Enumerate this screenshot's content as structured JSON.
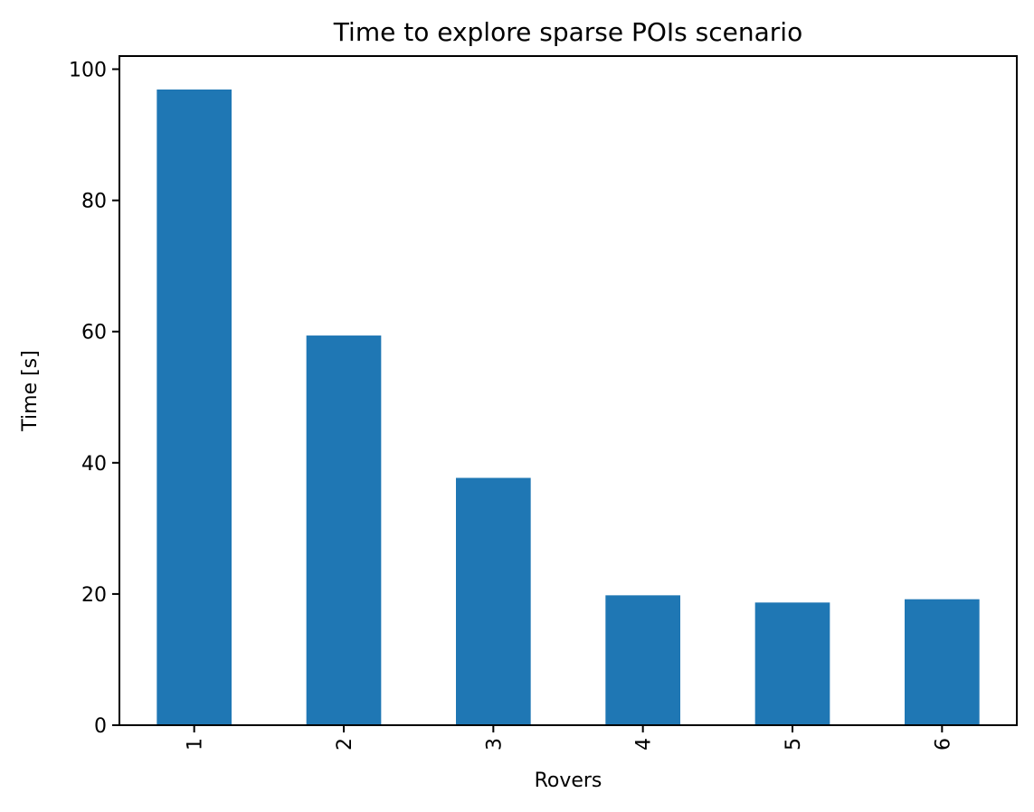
{
  "chart_data": {
    "type": "bar",
    "title": "Time to explore sparse POIs scenario",
    "xlabel": "Rovers",
    "ylabel": "Time [s]",
    "categories": [
      "1",
      "2",
      "3",
      "4",
      "5",
      "6"
    ],
    "values": [
      96.9,
      59.4,
      37.7,
      19.8,
      18.7,
      19.2
    ],
    "ylim": [
      0,
      102
    ],
    "yticks": [
      0,
      20,
      40,
      60,
      80,
      100
    ],
    "bar_color": "#1f77b4",
    "grid": false,
    "legend": "none",
    "x_tick_rotation": "vertical"
  }
}
